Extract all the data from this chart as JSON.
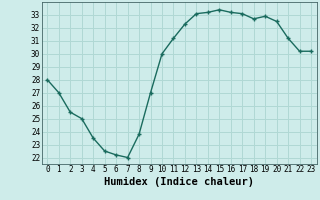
{
  "x": [
    0,
    1,
    2,
    3,
    4,
    5,
    6,
    7,
    8,
    9,
    10,
    11,
    12,
    13,
    14,
    15,
    16,
    17,
    18,
    19,
    20,
    21,
    22,
    23
  ],
  "y": [
    28,
    27,
    25.5,
    25,
    23.5,
    22.5,
    22.2,
    22,
    23.8,
    27,
    30,
    31.2,
    32.3,
    33.1,
    33.2,
    33.4,
    33.2,
    33.1,
    32.7,
    32.9,
    32.5,
    31.2,
    30.2,
    30.2
  ],
  "line_color": "#1a6b5e",
  "marker": "+",
  "bg_color": "#ceecea",
  "grid_color": "#b0d8d4",
  "xlabel": "Humidex (Indice chaleur)",
  "xlim": [
    -0.5,
    23.5
  ],
  "ylim": [
    21.5,
    34.0
  ],
  "yticks": [
    22,
    23,
    24,
    25,
    26,
    27,
    28,
    29,
    30,
    31,
    32,
    33
  ],
  "xticks": [
    0,
    1,
    2,
    3,
    4,
    5,
    6,
    7,
    8,
    9,
    10,
    11,
    12,
    13,
    14,
    15,
    16,
    17,
    18,
    19,
    20,
    21,
    22,
    23
  ],
  "tick_label_size": 5.5,
  "xlabel_fontsize": 7.5
}
